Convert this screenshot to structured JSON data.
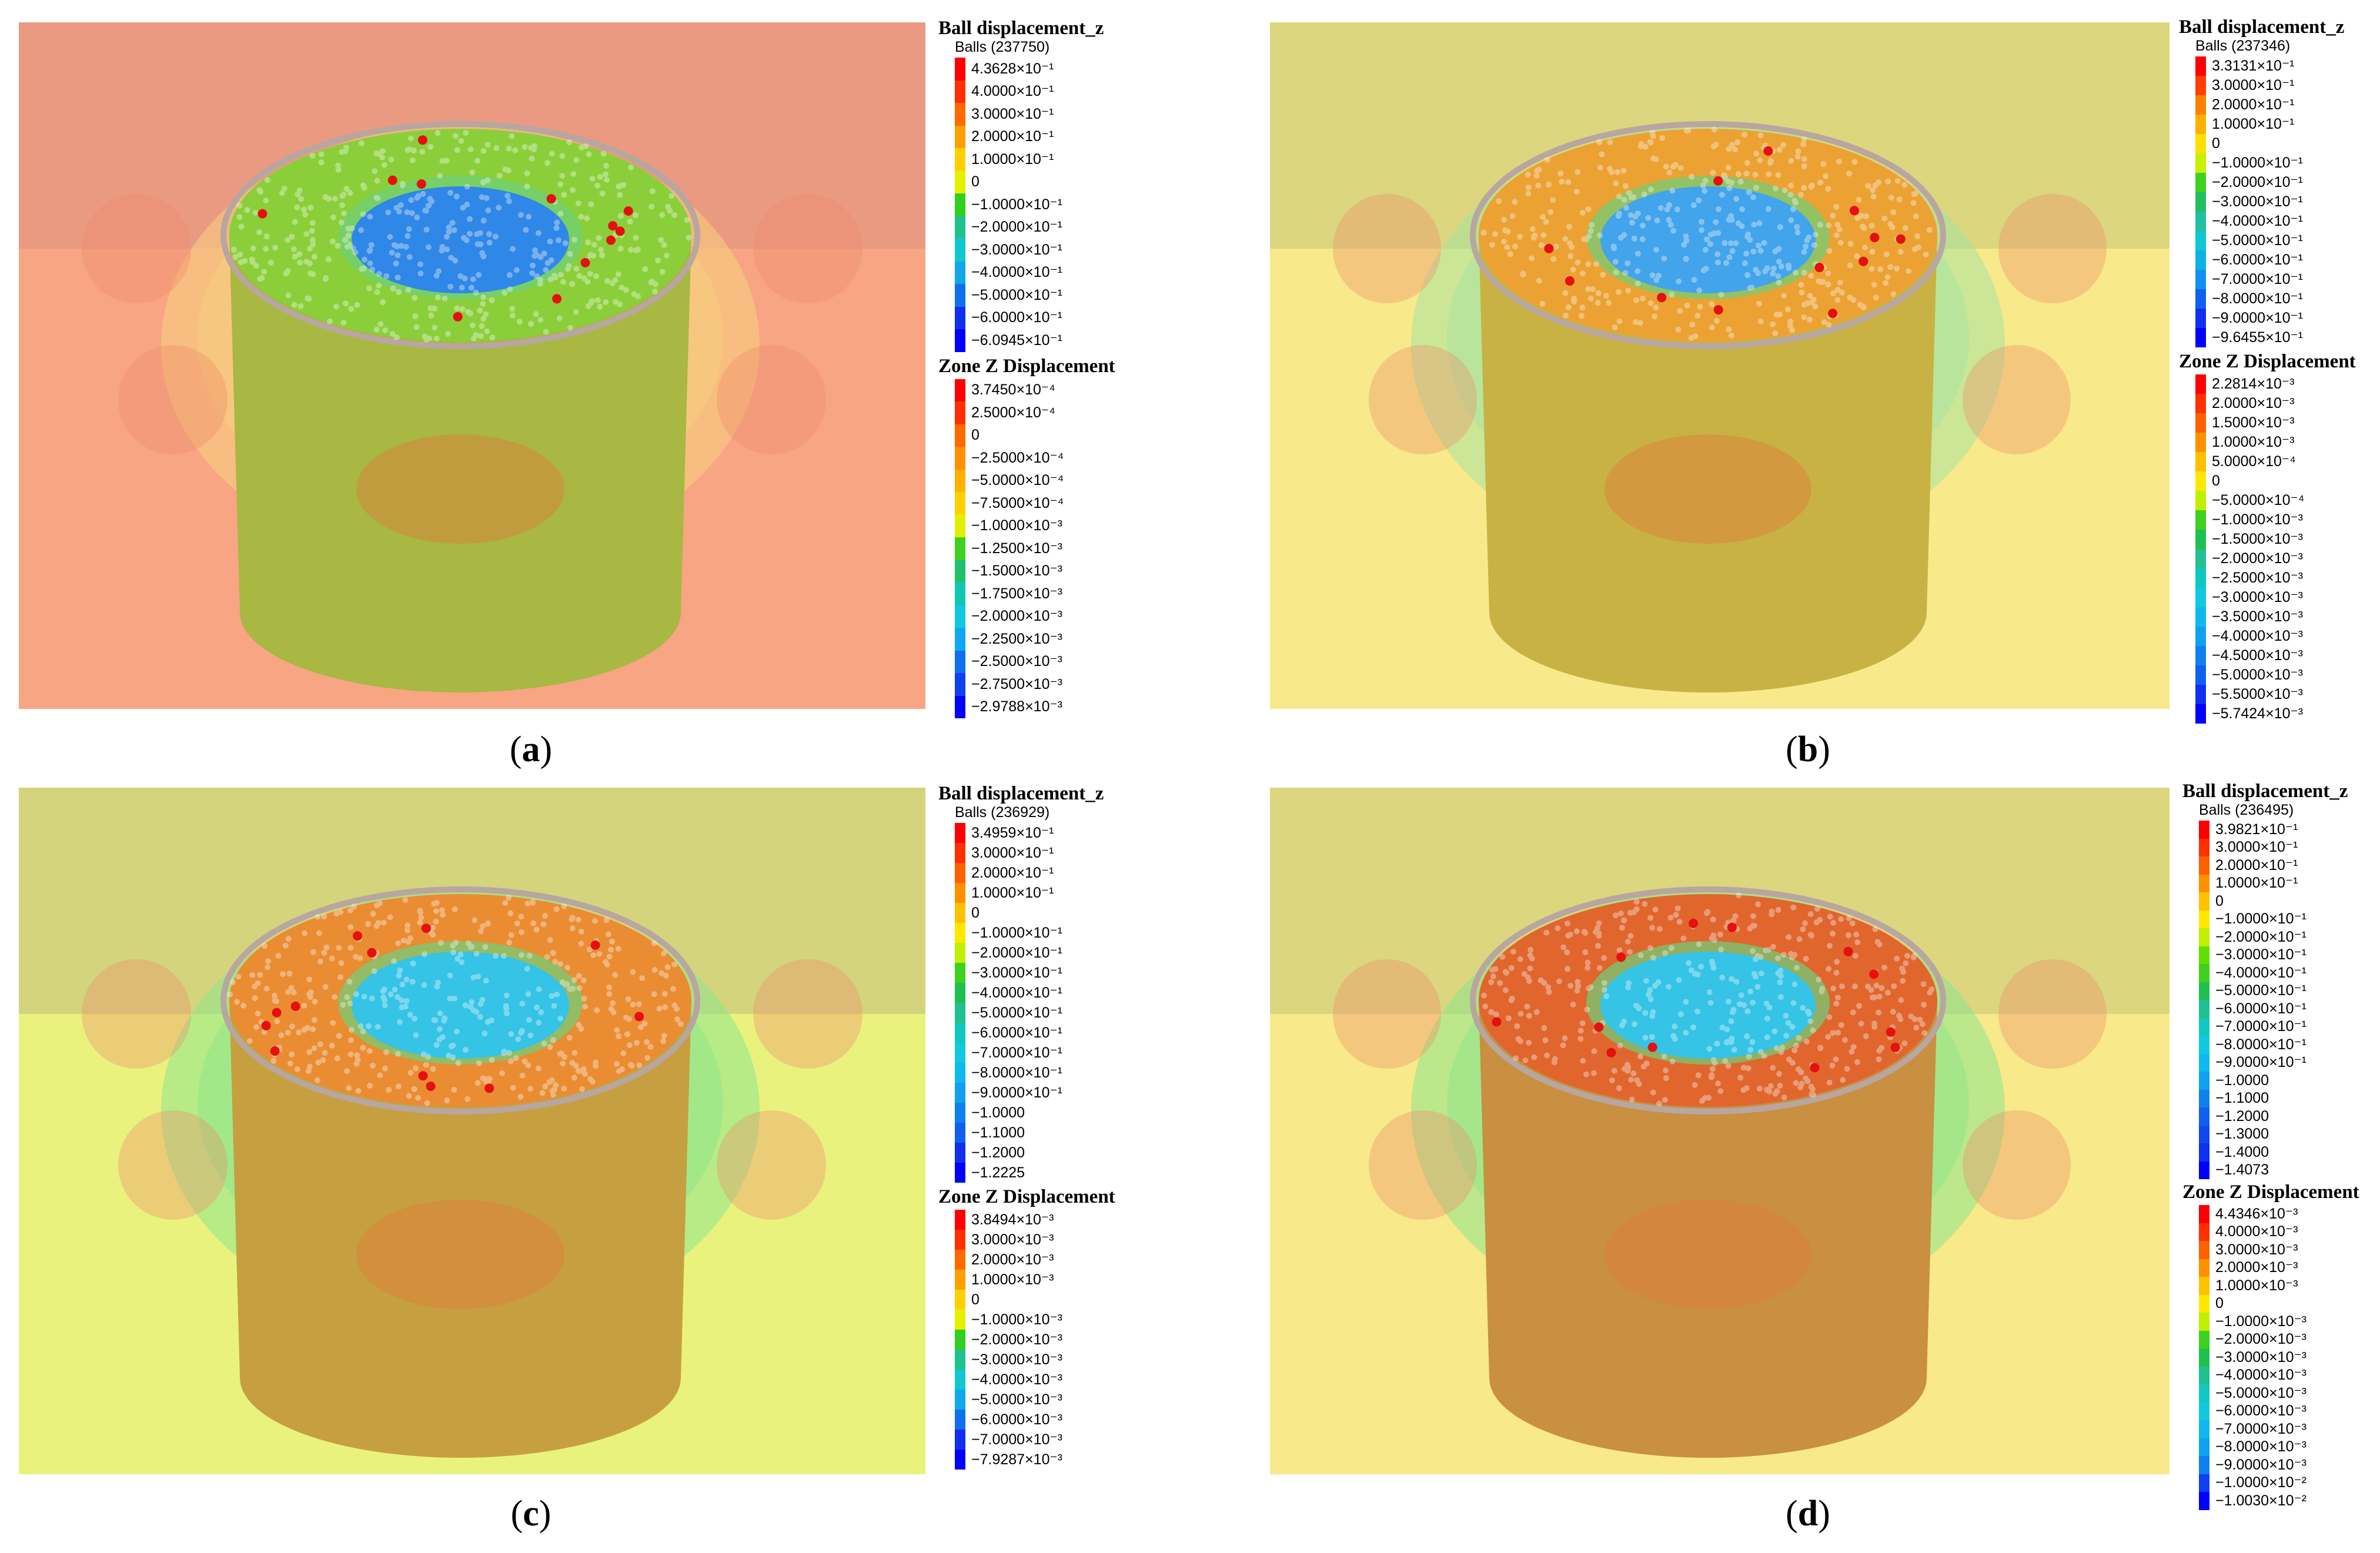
{
  "panels": [
    {
      "caption_open": "(",
      "caption_letter": "a",
      "caption_close": ")",
      "theme": {
        "background": "#f8a584",
        "upper_band": "#eb9a82",
        "top_surface": "#8acf3a",
        "center": "#2f87e8",
        "side": "#a8b842",
        "halo": "#f7d27e"
      },
      "ball_legend": {
        "title": "Ball displacement_z",
        "subtitle": "Balls (237750)",
        "labels": [
          "4.3628×10⁻¹",
          "4.0000×10⁻¹",
          "3.0000×10⁻¹",
          "2.0000×10⁻¹",
          "1.0000×10⁻¹",
          "0",
          "−1.0000×10⁻¹",
          "−2.0000×10⁻¹",
          "−3.0000×10⁻¹",
          "−4.0000×10⁻¹",
          "−5.0000×10⁻¹",
          "−6.0000×10⁻¹",
          "−6.0945×10⁻¹"
        ],
        "colors": [
          "#ff0000",
          "#ff3000",
          "#ff6a00",
          "#ffa000",
          "#ffd000",
          "#e8f000",
          "#30d020",
          "#20c090",
          "#10c8d0",
          "#10a8e8",
          "#1070f0",
          "#1030f0",
          "#0000ff"
        ]
      },
      "zone_legend": {
        "title": "Zone Z Displacement",
        "labels": [
          "3.7450×10⁻⁴",
          "2.5000×10⁻⁴",
          "0",
          "−2.5000×10⁻⁴",
          "−5.0000×10⁻⁴",
          "−7.5000×10⁻⁴",
          "−1.0000×10⁻³",
          "−1.2500×10⁻³",
          "−1.5000×10⁻³",
          "−1.7500×10⁻³",
          "−2.0000×10⁻³",
          "−2.2500×10⁻³",
          "−2.5000×10⁻³",
          "−2.7500×10⁻³",
          "−2.9788×10⁻³"
        ],
        "colors": [
          "#ff0000",
          "#ff3000",
          "#ff6a00",
          "#ff9000",
          "#ffb000",
          "#ffd000",
          "#e0f000",
          "#40d020",
          "#20c070",
          "#10c8b0",
          "#10c8e0",
          "#10a8f0",
          "#1070f0",
          "#1040f0",
          "#0000ff"
        ]
      }
    },
    {
      "caption_open": "(",
      "caption_letter": "b",
      "caption_close": ")",
      "theme": {
        "background": "#f8e98a",
        "upper_band": "#dcd67e",
        "top_surface": "#eba233",
        "center": "#42a4ea",
        "side": "#c8b244",
        "halo": "#a6e4a0"
      },
      "ball_legend": {
        "title": "Ball displacement_z",
        "subtitle": "Balls (237346)",
        "labels": [
          "3.3131×10⁻¹",
          "3.0000×10⁻¹",
          "2.0000×10⁻¹",
          "1.0000×10⁻¹",
          "0",
          "−1.0000×10⁻¹",
          "−2.0000×10⁻¹",
          "−3.0000×10⁻¹",
          "−4.0000×10⁻¹",
          "−5.0000×10⁻¹",
          "−6.0000×10⁻¹",
          "−7.0000×10⁻¹",
          "−8.0000×10⁻¹",
          "−9.0000×10⁻¹",
          "−9.6455×10⁻¹"
        ],
        "colors": [
          "#ff0000",
          "#ff4000",
          "#ff8000",
          "#ffb000",
          "#ffe000",
          "#c8f000",
          "#40d020",
          "#20c060",
          "#20c0a0",
          "#10c8d0",
          "#10b0e8",
          "#1090f0",
          "#1060f0",
          "#1030f0",
          "#0000ff"
        ]
      },
      "zone_legend": {
        "title": "Zone Z Displacement",
        "labels": [
          "2.2814×10⁻³",
          "2.0000×10⁻³",
          "1.5000×10⁻³",
          "1.0000×10⁻³",
          "5.0000×10⁻⁴",
          "0",
          "−5.0000×10⁻⁴",
          "−1.0000×10⁻³",
          "−1.5000×10⁻³",
          "−2.0000×10⁻³",
          "−2.5000×10⁻³",
          "−3.0000×10⁻³",
          "−3.5000×10⁻³",
          "−4.0000×10⁻³",
          "−4.5000×10⁻³",
          "−5.0000×10⁻³",
          "−5.5000×10⁻³",
          "−5.7424×10⁻³"
        ],
        "colors": [
          "#ff0000",
          "#ff3000",
          "#ff6000",
          "#ff9000",
          "#ffc000",
          "#ffe800",
          "#c0f000",
          "#40d020",
          "#20c050",
          "#20c090",
          "#10c8c0",
          "#10c8e0",
          "#10b8f0",
          "#10a0f0",
          "#1080f0",
          "#1060f0",
          "#1030f0",
          "#0000ff"
        ]
      }
    },
    {
      "caption_open": "(",
      "caption_letter": "c",
      "caption_close": ")",
      "theme": {
        "background": "#eaf27e",
        "upper_band": "#d4d47c",
        "top_surface": "#ea8c32",
        "center": "#35c3e6",
        "side": "#c6a040",
        "halo": "#8de68c"
      },
      "ball_legend": {
        "title": "Ball displacement_z",
        "subtitle": "Balls (236929)",
        "labels": [
          "3.4959×10⁻¹",
          "3.0000×10⁻¹",
          "2.0000×10⁻¹",
          "1.0000×10⁻¹",
          "0",
          "−1.0000×10⁻¹",
          "−2.0000×10⁻¹",
          "−3.0000×10⁻¹",
          "−4.0000×10⁻¹",
          "−5.0000×10⁻¹",
          "−6.0000×10⁻¹",
          "−7.0000×10⁻¹",
          "−8.0000×10⁻¹",
          "−9.0000×10⁻¹",
          "−1.0000",
          "−1.1000",
          "−1.2000",
          "−1.2225"
        ],
        "colors": [
          "#ff0000",
          "#ff3000",
          "#ff6000",
          "#ff9000",
          "#ffc000",
          "#ffe800",
          "#c0f000",
          "#40d020",
          "#20c050",
          "#20c090",
          "#10c8c0",
          "#10c8e0",
          "#10b8f0",
          "#10a0f0",
          "#1080f0",
          "#1060f0",
          "#1030f0",
          "#0000ff"
        ]
      },
      "zone_legend": {
        "title": "Zone Z Displacement",
        "labels": [
          "3.8494×10⁻³",
          "3.0000×10⁻³",
          "2.0000×10⁻³",
          "1.0000×10⁻³",
          "0",
          "−1.0000×10⁻³",
          "−2.0000×10⁻³",
          "−3.0000×10⁻³",
          "−4.0000×10⁻³",
          "−5.0000×10⁻³",
          "−6.0000×10⁻³",
          "−7.0000×10⁻³",
          "−7.9287×10⁻³"
        ],
        "colors": [
          "#ff0000",
          "#ff3000",
          "#ff6a00",
          "#ffa000",
          "#ffd000",
          "#e8f000",
          "#30d020",
          "#20c090",
          "#10c8d0",
          "#10a8e8",
          "#1070f0",
          "#1030f0",
          "#0000ff"
        ]
      }
    },
    {
      "caption_open": "(",
      "caption_letter": "d",
      "caption_close": ")",
      "theme": {
        "background": "#f8e98a",
        "upper_band": "#dcd67e",
        "top_surface": "#e0662e",
        "center": "#35c3e6",
        "side": "#c89040",
        "halo": "#8de68c"
      },
      "ball_legend": {
        "title": "Ball displacement_z",
        "subtitle": "Balls (236495)",
        "labels": [
          "3.9821×10⁻¹",
          "3.0000×10⁻¹",
          "2.0000×10⁻¹",
          "1.0000×10⁻¹",
          "0",
          "−1.0000×10⁻¹",
          "−2.0000×10⁻¹",
          "−3.0000×10⁻¹",
          "−4.0000×10⁻¹",
          "−5.0000×10⁻¹",
          "−6.0000×10⁻¹",
          "−7.0000×10⁻¹",
          "−8.0000×10⁻¹",
          "−9.0000×10⁻¹",
          "−1.0000",
          "−1.1000",
          "−1.2000",
          "−1.3000",
          "−1.4000",
          "−1.4073"
        ],
        "colors": [
          "#ff0000",
          "#ff3000",
          "#ff6000",
          "#ff9000",
          "#ffc000",
          "#ffe800",
          "#c0f000",
          "#60e000",
          "#40d020",
          "#20c050",
          "#20c090",
          "#10c8c0",
          "#10c8e0",
          "#10b8f0",
          "#10a0f0",
          "#1080f0",
          "#1060f0",
          "#1048f0",
          "#1030f0",
          "#0000ff"
        ]
      },
      "zone_legend": {
        "title": "Zone Z Displacement",
        "labels": [
          "4.4346×10⁻³",
          "4.0000×10⁻³",
          "3.0000×10⁻³",
          "2.0000×10⁻³",
          "1.0000×10⁻³",
          "0",
          "−1.0000×10⁻³",
          "−2.0000×10⁻³",
          "−3.0000×10⁻³",
          "−4.0000×10⁻³",
          "−5.0000×10⁻³",
          "−6.0000×10⁻³",
          "−7.0000×10⁻³",
          "−8.0000×10⁻³",
          "−9.0000×10⁻³",
          "−1.0000×10⁻²",
          "−1.0030×10⁻²"
        ],
        "colors": [
          "#ff0000",
          "#ff3000",
          "#ff6000",
          "#ff9000",
          "#ffc000",
          "#ffe800",
          "#c0f000",
          "#40d020",
          "#20c050",
          "#20c090",
          "#10c8c0",
          "#10c8e0",
          "#10b8f0",
          "#10a0f0",
          "#1080f0",
          "#1040f0",
          "#0000ff"
        ]
      }
    }
  ]
}
